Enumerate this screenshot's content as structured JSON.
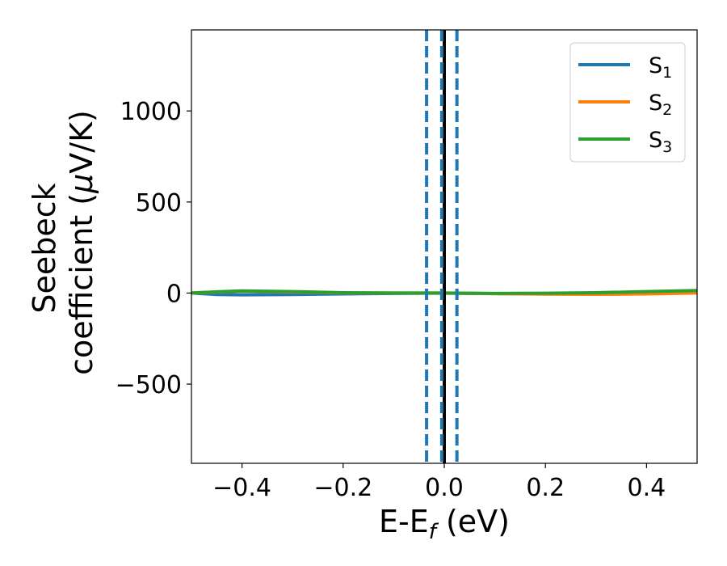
{
  "chart_data": {
    "type": "line",
    "title": "",
    "xlabel": {
      "main": "E-E",
      "sub": "f",
      "units": " (eV)"
    },
    "ylabel": {
      "line1": "Seebeck",
      "line2": "coefficient  (",
      "mu": "μ",
      "units": "V/K)"
    },
    "xlim": [
      -0.5,
      0.5
    ],
    "ylim": [
      -935,
      1445
    ],
    "xticks": [
      -0.4,
      -0.2,
      0.0,
      0.2,
      0.4
    ],
    "xtick_labels": [
      "−0.4",
      "−0.2",
      "0.0",
      "0.2",
      "0.4"
    ],
    "yticks": [
      -500,
      0,
      500,
      1000
    ],
    "ytick_labels": [
      "−500",
      "0",
      "500",
      "1000"
    ],
    "grid": false,
    "legend_placement": "top-right",
    "series": [
      {
        "name": "S",
        "sub": "1",
        "color": "#1f77b4",
        "x": [
          -0.5,
          -0.45,
          -0.4,
          -0.3,
          -0.2,
          -0.1,
          0.0,
          0.1,
          0.2,
          0.3,
          0.4,
          0.5
        ],
        "y": [
          0,
          -8,
          -10,
          -8,
          -5,
          -2,
          -1,
          -3,
          -5,
          -3,
          0,
          3
        ]
      },
      {
        "name": "S",
        "sub": "2",
        "color": "#ff7f0e",
        "x": [
          -0.5,
          -0.45,
          -0.4,
          -0.3,
          -0.2,
          -0.1,
          0.0,
          0.1,
          0.2,
          0.3,
          0.4,
          0.5
        ],
        "y": [
          0,
          6,
          10,
          6,
          1,
          0,
          0,
          -3,
          -6,
          -7,
          -5,
          0
        ]
      },
      {
        "name": "S",
        "sub": "3",
        "color": "#2ca02c",
        "x": [
          -0.5,
          -0.45,
          -0.4,
          -0.3,
          -0.2,
          -0.1,
          0.0,
          0.1,
          0.2,
          0.3,
          0.4,
          0.5
        ],
        "y": [
          0,
          7,
          12,
          8,
          2,
          0,
          0,
          -2,
          -1,
          2,
          8,
          14
        ]
      }
    ],
    "vertical_lines": [
      {
        "x": 0.0,
        "style": "solid",
        "color": "#000000"
      },
      {
        "x": -0.035,
        "style": "dashed",
        "color": "#1f77b4"
      },
      {
        "x": -0.005,
        "style": "dashed",
        "color": "#1f77b4"
      },
      {
        "x": 0.025,
        "style": "dashed",
        "color": "#1f77b4"
      }
    ]
  }
}
